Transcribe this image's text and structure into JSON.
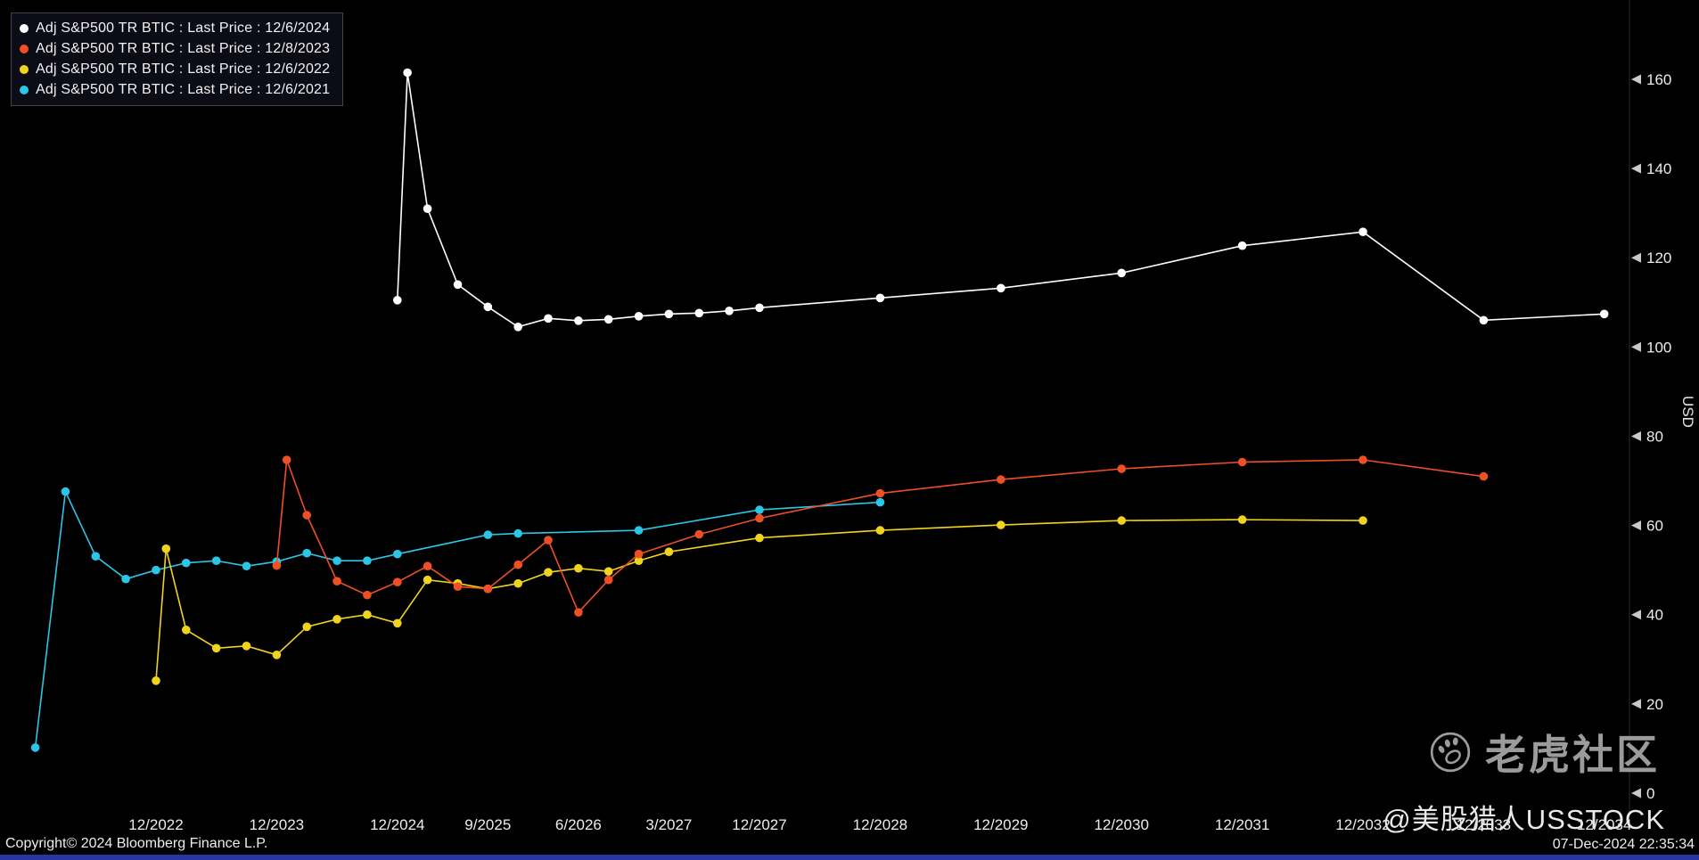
{
  "colors": {
    "background": "#000000",
    "axis_text": "#ececec",
    "tick_arrow": "#c9c9c9",
    "legend_border": "#41414f",
    "watermark_gray": "#9b9b9b",
    "bottom_bar_blue": "#2836a3"
  },
  "footer": {
    "copyright": "Copyright© 2024 Bloomberg Finance L.P.",
    "timestamp": "07-Dec-2024 22:35:34"
  },
  "watermark": {
    "community": "老虎社区",
    "handle": "@美股猎人USSTOCK",
    "logo_icon": "tiger-paw-circle-icon"
  },
  "chart_data": {
    "type": "line",
    "title": "",
    "xlabel": "",
    "ylabel": "USD",
    "ylim": [
      0,
      165
    ],
    "grid": false,
    "legend_position": "top-left",
    "x_unit": "months since 12/2021",
    "yticks": [
      0,
      20,
      40,
      60,
      80,
      100,
      120,
      140,
      160
    ],
    "xticks": [
      {
        "m": 12,
        "label": "12/2022"
      },
      {
        "m": 24,
        "label": "12/2023"
      },
      {
        "m": 36,
        "label": "12/2024"
      },
      {
        "m": 45,
        "label": "9/2025"
      },
      {
        "m": 54,
        "label": "6/2026"
      },
      {
        "m": 63,
        "label": "3/2027"
      },
      {
        "m": 72,
        "label": "12/2027"
      },
      {
        "m": 84,
        "label": "12/2028"
      },
      {
        "m": 96,
        "label": "12/2029"
      },
      {
        "m": 108,
        "label": "12/2030"
      },
      {
        "m": 120,
        "label": "12/2031"
      },
      {
        "m": 132,
        "label": "12/2032"
      },
      {
        "m": 144,
        "label": "12/2033"
      },
      {
        "m": 156,
        "label": "12/2034"
      }
    ],
    "series": [
      {
        "id": "btic-2024",
        "name": "Adj S&P500 TR BTIC : Last Price : 12/6/2024",
        "color": "#ffffff",
        "points": [
          [
            36,
            110.5
          ],
          [
            37,
            161.5
          ],
          [
            39,
            131
          ],
          [
            42,
            114
          ],
          [
            45,
            109
          ],
          [
            48,
            104.5
          ],
          [
            51,
            106.4
          ],
          [
            54,
            105.9
          ],
          [
            57,
            106.2
          ],
          [
            60,
            106.9
          ],
          [
            63,
            107.4
          ],
          [
            66,
            107.6
          ],
          [
            69,
            108.1
          ],
          [
            72,
            108.8
          ],
          [
            84,
            111
          ],
          [
            96,
            113.2
          ],
          [
            108,
            116.6
          ],
          [
            120,
            122.7
          ],
          [
            132,
            125.8
          ],
          [
            144,
            106
          ],
          [
            156,
            107.4
          ]
        ]
      },
      {
        "id": "btic-2023",
        "name": "Adj S&P500 TR BTIC : Last Price : 12/8/2023",
        "color": "#ef4f25",
        "points": [
          [
            24,
            51
          ],
          [
            25,
            74.7
          ],
          [
            27,
            62.3
          ],
          [
            30,
            47.5
          ],
          [
            33,
            44.4
          ],
          [
            36,
            47.3
          ],
          [
            39,
            50.9
          ],
          [
            42,
            46.3
          ],
          [
            45,
            45.8
          ],
          [
            48,
            51.2
          ],
          [
            51,
            56.7
          ],
          [
            54,
            40.5
          ],
          [
            57,
            47.8
          ],
          [
            60,
            53.6
          ],
          [
            66,
            58
          ],
          [
            72,
            61.6
          ],
          [
            84,
            67.2
          ],
          [
            96,
            70.3
          ],
          [
            108,
            72.7
          ],
          [
            120,
            74.2
          ],
          [
            132,
            74.7
          ],
          [
            144,
            71
          ]
        ]
      },
      {
        "id": "btic-2022",
        "name": "Adj S&P500 TR BTIC : Last Price : 12/6/2022",
        "color": "#efd31f",
        "points": [
          [
            12,
            25.2
          ],
          [
            13,
            54.8
          ],
          [
            15,
            36.6
          ],
          [
            18,
            32.5
          ],
          [
            21,
            33
          ],
          [
            24,
            31
          ],
          [
            27,
            37.3
          ],
          [
            30,
            39
          ],
          [
            33,
            40
          ],
          [
            36,
            38.1
          ],
          [
            39,
            47.8
          ],
          [
            42,
            47
          ],
          [
            45,
            45.8
          ],
          [
            48,
            47
          ],
          [
            51,
            49.5
          ],
          [
            54,
            50.4
          ],
          [
            57,
            49.7
          ],
          [
            60,
            52.1
          ],
          [
            63,
            54.1
          ],
          [
            72,
            57.2
          ],
          [
            84,
            58.9
          ],
          [
            96,
            60.1
          ],
          [
            108,
            61.1
          ],
          [
            120,
            61.3
          ],
          [
            132,
            61.1
          ]
        ]
      },
      {
        "id": "btic-2021",
        "name": "Adj S&P500 TR BTIC : Last Price : 12/6/2021",
        "color": "#2cc5e5",
        "points": [
          [
            0,
            10.2
          ],
          [
            3,
            67.6
          ],
          [
            6,
            53.1
          ],
          [
            9,
            48
          ],
          [
            12,
            50
          ],
          [
            15,
            51.6
          ],
          [
            18,
            52.1
          ],
          [
            21,
            50.9
          ],
          [
            24,
            51.9
          ],
          [
            27,
            53.8
          ],
          [
            30,
            52.1
          ],
          [
            33,
            52.1
          ],
          [
            36,
            53.6
          ],
          [
            45,
            57.9
          ],
          [
            48,
            58.2
          ],
          [
            60,
            58.9
          ],
          [
            72,
            63.5
          ],
          [
            84,
            65.2
          ]
        ]
      }
    ]
  }
}
